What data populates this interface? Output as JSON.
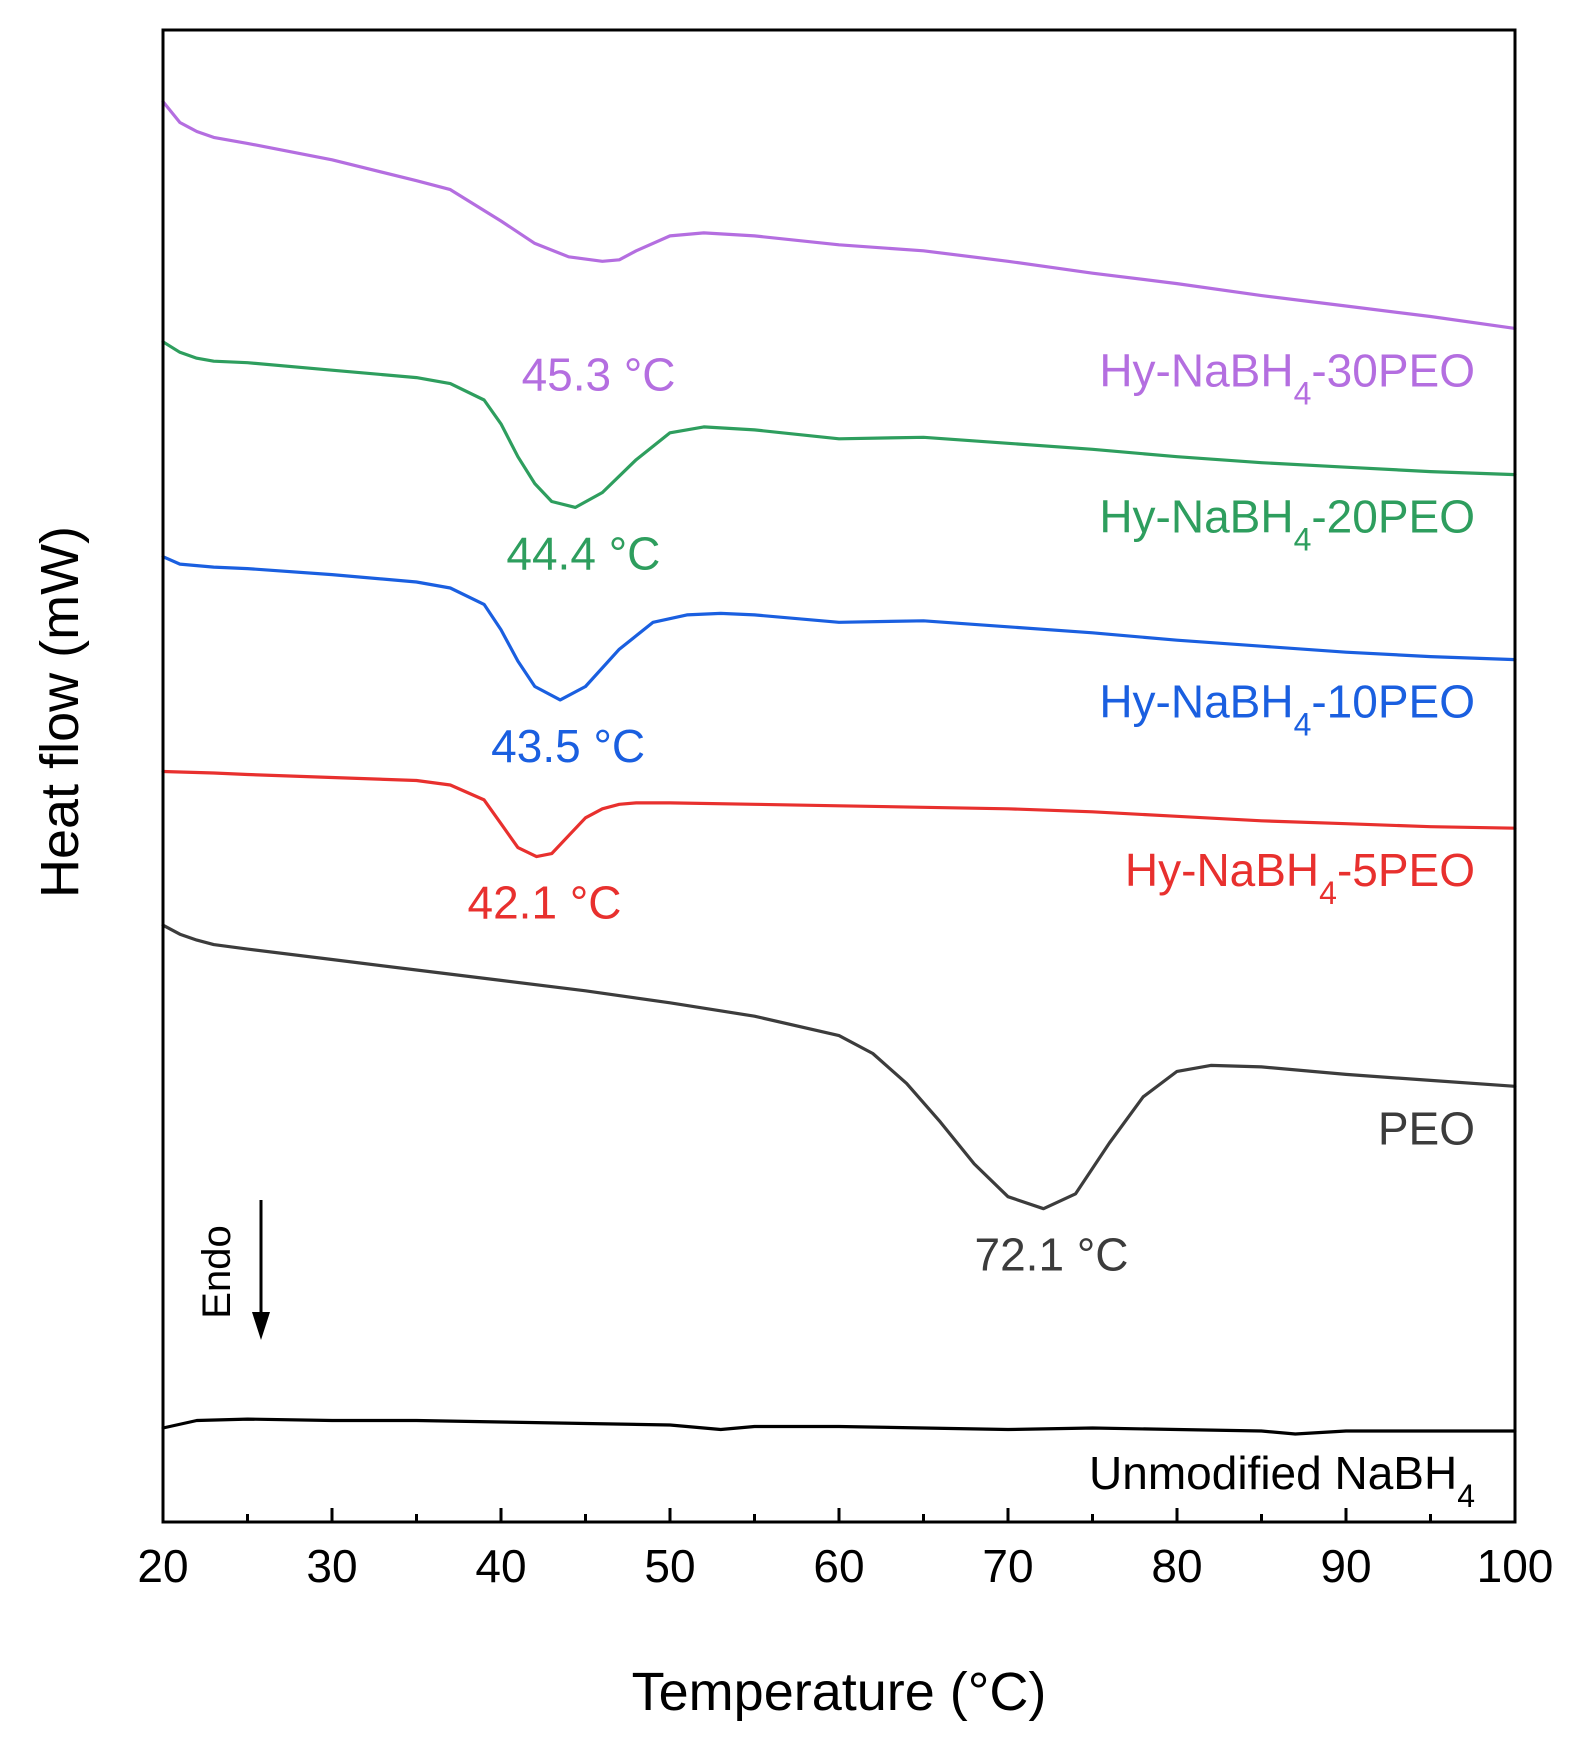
{
  "chart_data": {
    "type": "line",
    "title": "",
    "xlabel": "Temperature (°C)",
    "ylabel": "Heat flow (mW)",
    "xlim": [
      20,
      100
    ],
    "ylim": [
      0,
      1
    ],
    "xticks": [
      "20",
      "30",
      "40",
      "50",
      "60",
      "70",
      "80",
      "90",
      "100"
    ],
    "yticks_visible": false,
    "annotation": {
      "endo_label": "Endo",
      "direction": "down"
    },
    "series": [
      {
        "name": "Hy-NaBH4-30PEO",
        "label_main": "Hy-NaBH",
        "label_sub": "4",
        "label_tail": "-30PEO",
        "color": "#b46ee0",
        "peak_label": "45.3 °C",
        "peak_x": 45.3,
        "x": [
          20,
          21,
          22,
          23,
          25,
          30,
          35,
          37,
          40,
          42,
          44,
          46,
          47,
          48,
          50,
          52,
          55,
          60,
          65,
          70,
          75,
          80,
          85,
          90,
          95,
          100
        ],
        "y": [
          0.952,
          0.938,
          0.932,
          0.928,
          0.924,
          0.913,
          0.899,
          0.893,
          0.872,
          0.857,
          0.848,
          0.845,
          0.846,
          0.852,
          0.862,
          0.864,
          0.862,
          0.856,
          0.852,
          0.845,
          0.837,
          0.83,
          0.822,
          0.815,
          0.808,
          0.8
        ]
      },
      {
        "name": "Hy-NaBH4-20PEO",
        "label_main": "Hy-NaBH",
        "label_sub": "4",
        "label_tail": "-20PEO",
        "color": "#2e9e5e",
        "peak_label": "44.4 °C",
        "peak_x": 44.4,
        "x": [
          20,
          21,
          22,
          23,
          25,
          30,
          35,
          37,
          39,
          40,
          41,
          42,
          43,
          44.4,
          46,
          48,
          50,
          52,
          55,
          60,
          65,
          70,
          75,
          80,
          85,
          90,
          95,
          100
        ],
        "y": [
          0.791,
          0.784,
          0.78,
          0.778,
          0.777,
          0.772,
          0.767,
          0.763,
          0.752,
          0.736,
          0.714,
          0.696,
          0.684,
          0.68,
          0.69,
          0.712,
          0.73,
          0.734,
          0.732,
          0.726,
          0.727,
          0.723,
          0.719,
          0.714,
          0.71,
          0.707,
          0.704,
          0.702
        ]
      },
      {
        "name": "Hy-NaBH4-10PEO",
        "label_main": "Hy-NaBH",
        "label_sub": "4",
        "label_tail": "-10PEO",
        "color": "#1a5fe0",
        "peak_label": "43.5 °C",
        "peak_x": 43.5,
        "x": [
          20,
          21,
          23,
          25,
          30,
          35,
          37,
          39,
          40,
          41,
          42,
          43.5,
          45,
          47,
          49,
          51,
          53,
          55,
          60,
          65,
          70,
          75,
          80,
          85,
          90,
          95,
          100
        ],
        "y": [
          0.647,
          0.642,
          0.64,
          0.639,
          0.635,
          0.63,
          0.626,
          0.615,
          0.598,
          0.577,
          0.56,
          0.551,
          0.56,
          0.585,
          0.603,
          0.608,
          0.609,
          0.608,
          0.603,
          0.604,
          0.6,
          0.596,
          0.591,
          0.587,
          0.583,
          0.58,
          0.578
        ]
      },
      {
        "name": "Hy-NaBH4-5PEO",
        "label_main": "Hy-NaBH",
        "label_sub": "4",
        "label_tail": "-5PEO",
        "color": "#e8302e",
        "peak_label": "42.1 °C",
        "peak_x": 42.1,
        "x": [
          20,
          23,
          25,
          30,
          35,
          37,
          39,
          40,
          41,
          42.1,
          43,
          44,
          45,
          46,
          47,
          48,
          50,
          55,
          60,
          65,
          70,
          75,
          80,
          85,
          90,
          95,
          100
        ],
        "y": [
          0.503,
          0.502,
          0.501,
          0.499,
          0.497,
          0.494,
          0.484,
          0.468,
          0.452,
          0.446,
          0.448,
          0.46,
          0.472,
          0.478,
          0.481,
          0.482,
          0.482,
          0.481,
          0.48,
          0.479,
          0.478,
          0.476,
          0.473,
          0.47,
          0.468,
          0.466,
          0.465
        ]
      },
      {
        "name": "PEO",
        "label_main": "PEO",
        "label_sub": "",
        "label_tail": "",
        "color": "#3c3c3c",
        "peak_label": "72.1 °C",
        "peak_x": 72.1,
        "x": [
          20,
          21,
          22,
          23,
          25,
          30,
          35,
          40,
          45,
          50,
          55,
          60,
          62,
          64,
          66,
          68,
          70,
          72.1,
          74,
          76,
          78,
          80,
          82,
          85,
          90,
          95,
          100
        ],
        "y": [
          0.4,
          0.394,
          0.39,
          0.387,
          0.384,
          0.377,
          0.37,
          0.363,
          0.356,
          0.348,
          0.339,
          0.326,
          0.314,
          0.294,
          0.268,
          0.24,
          0.218,
          0.21,
          0.22,
          0.254,
          0.285,
          0.302,
          0.306,
          0.305,
          0.3,
          0.296,
          0.292
        ]
      },
      {
        "name": "Unmodified NaBH4",
        "label_main": "Unmodified NaBH",
        "label_sub": "4",
        "label_tail": "",
        "color": "#000000",
        "peak_label": "",
        "peak_x": null,
        "x": [
          20,
          22,
          25,
          30,
          35,
          40,
          45,
          50,
          53,
          55,
          60,
          65,
          70,
          75,
          80,
          85,
          87,
          90,
          95,
          100
        ],
        "y": [
          0.063,
          0.068,
          0.069,
          0.068,
          0.068,
          0.067,
          0.066,
          0.065,
          0.062,
          0.064,
          0.064,
          0.063,
          0.062,
          0.063,
          0.062,
          0.061,
          0.059,
          0.061,
          0.061,
          0.061
        ]
      }
    ]
  }
}
